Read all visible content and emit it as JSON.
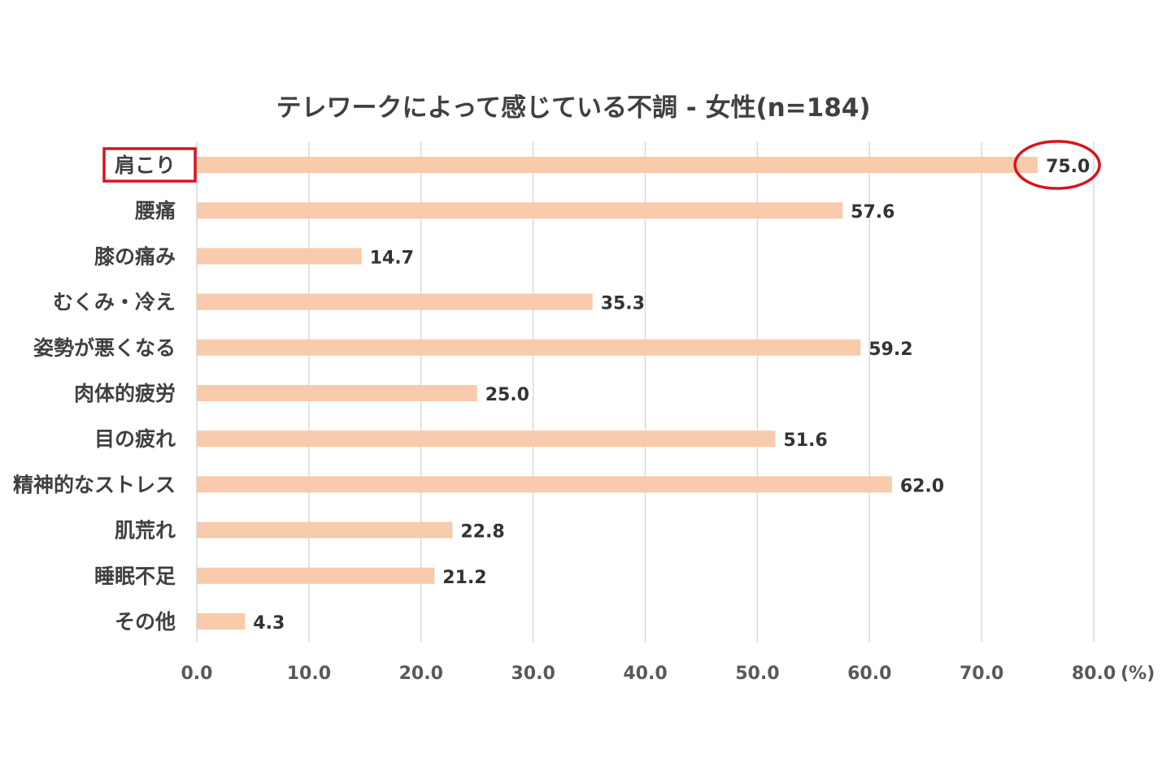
{
  "chart_data": {
    "type": "bar",
    "orientation": "horizontal",
    "title": "テレワークによって感じている不調 - 女性(n=184)",
    "categories": [
      "肩こり",
      "腰痛",
      "膝の痛み",
      "むくみ・冷え",
      "姿勢が悪くなる",
      "肉体的疲労",
      "目の疲れ",
      "精神的なストレス",
      "肌荒れ",
      "睡眠不足",
      "その他"
    ],
    "values": [
      75.0,
      57.6,
      14.7,
      35.3,
      59.2,
      25.0,
      51.6,
      62.0,
      22.8,
      21.2,
      4.3
    ],
    "value_labels": [
      "75.0",
      "57.6",
      "14.7",
      "35.3",
      "59.2",
      "25.0",
      "51.6",
      "62.0",
      "22.8",
      "21.2",
      "4.3"
    ],
    "xlim": [
      0,
      80
    ],
    "x_ticks": [
      0,
      10,
      20,
      30,
      40,
      50,
      60,
      70,
      80
    ],
    "x_tick_labels": [
      "0.0",
      "10.0",
      "20.0",
      "30.0",
      "40.0",
      "50.0",
      "60.0",
      "70.0",
      "80.0"
    ],
    "x_unit": "(%)",
    "xlabel": "",
    "ylabel": "",
    "grid": true,
    "legend": "none",
    "highlighted_category": "肩こり",
    "colors": {
      "bar": "#f7cbab",
      "grid": "#d9d9d9",
      "highlight": "#d9141c"
    }
  }
}
